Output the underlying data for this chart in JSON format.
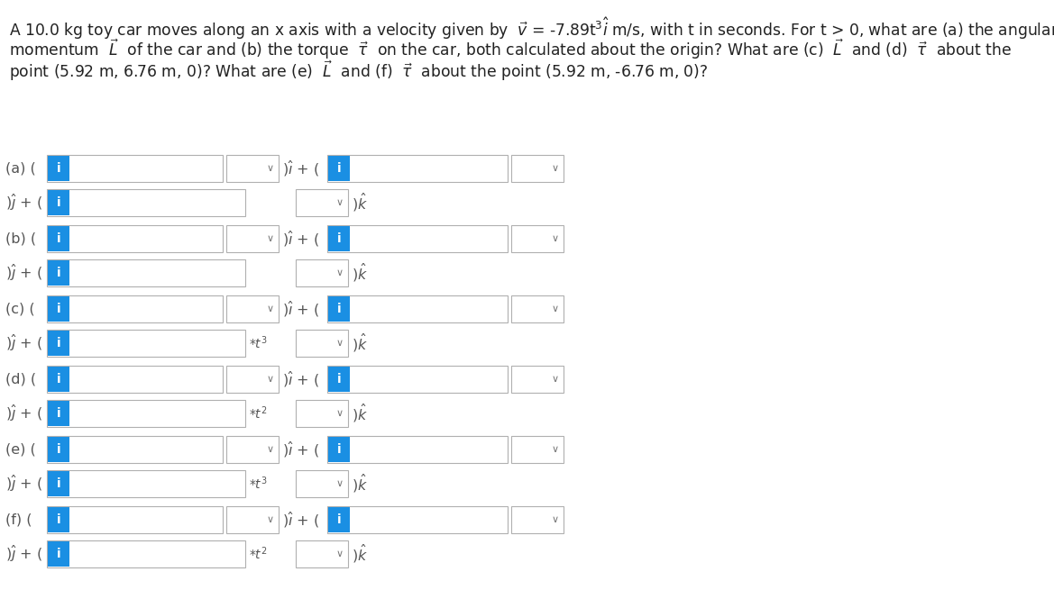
{
  "background_color": "#ffffff",
  "text_color": "#555555",
  "blue_color": "#1a8fe3",
  "box_border_color": "#b0b0b0",
  "figsize": [
    11.69,
    6.65
  ],
  "dpi": 100,
  "header_lines": [
    "A 10.0 kg toy car moves along an x axis with a velocity given by  $\\vec{v}$ = -7.89t$^3$$\\hat{i}$ m/s, with t in seconds. For t > 0, what are (a) the angular",
    "momentum  $\\vec{L}$  of the car and (b) the torque  $\\vec{\\tau}$  on the car, both calculated about the origin? What are (c)  $\\vec{L}$  and (d)  $\\vec{\\tau}$  about the",
    "point (5.92 m, 6.76 m, 0)? What are (e)  $\\vec{L}$  and (f)  $\\vec{\\tau}$  about the point (5.92 m, -6.76 m, 0)?"
  ],
  "groups": [
    {
      "label_a": "(a) (",
      "t_suffix": null
    },
    {
      "label_a": "(b) (",
      "t_suffix": null
    },
    {
      "label_a": "(c) (",
      "t_suffix": "*t3"
    },
    {
      "label_a": "(d) (",
      "t_suffix": "*t2"
    },
    {
      "label_a": "(e) (",
      "t_suffix": "*t3"
    },
    {
      "label_a": "(f) (",
      "t_suffix": "*t2"
    }
  ]
}
